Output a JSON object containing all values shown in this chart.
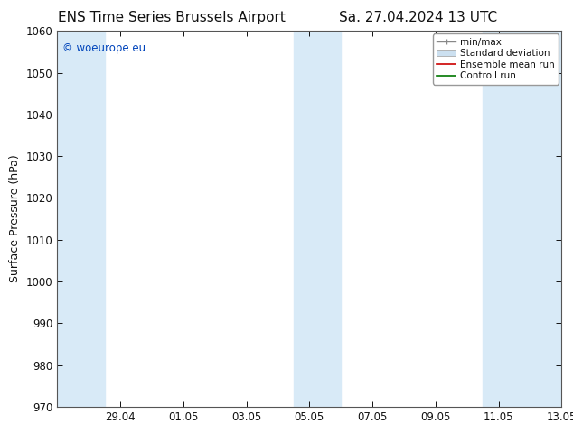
{
  "title_left": "ENS Time Series Brussels Airport",
  "title_right": "Sa. 27.04.2024 13 UTC",
  "ylabel": "Surface Pressure (hPa)",
  "ylim": [
    970,
    1060
  ],
  "yticks": [
    970,
    980,
    990,
    1000,
    1010,
    1020,
    1030,
    1040,
    1050,
    1060
  ],
  "xlim_start": 0,
  "xlim_end": 16,
  "xtick_labels": [
    "29.04",
    "01.05",
    "03.05",
    "05.05",
    "07.05",
    "09.05",
    "11.05",
    "13.05"
  ],
  "xtick_positions": [
    2,
    4,
    6,
    8,
    10,
    12,
    14,
    16
  ],
  "shaded_bands": [
    {
      "x_start": 0,
      "x_end": 1.5,
      "color": "#d8eaf7"
    },
    {
      "x_start": 7.5,
      "x_end": 9.0,
      "color": "#d8eaf7"
    },
    {
      "x_start": 13.5,
      "x_end": 16,
      "color": "#d8eaf7"
    }
  ],
  "watermark_text": "© woeurope.eu",
  "watermark_color": "#0044bb",
  "legend_labels": [
    "min/max",
    "Standard deviation",
    "Ensemble mean run",
    "Controll run"
  ],
  "background_color": "#ffffff",
  "plot_bg_color": "#ffffff",
  "font_color": "#111111",
  "spine_color": "#555555",
  "title_fontsize": 11,
  "label_fontsize": 9,
  "tick_fontsize": 8.5,
  "legend_fontsize": 7.5
}
